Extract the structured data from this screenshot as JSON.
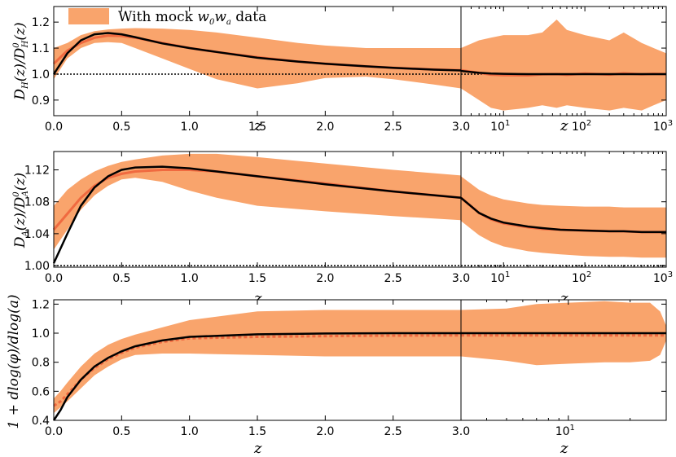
{
  "chart_data": [
    {
      "type": "line",
      "panel": "D_H ratio",
      "ylabel_main": "D",
      "ylabel_sub": "H",
      "ylabel_rest": "(z)/D",
      "ylabel_sup2": "0",
      "ylabel_sub2": "H",
      "ylabel_end": "(z)",
      "xlabel": "z",
      "ylim": [
        0.84,
        1.26
      ],
      "yticks": [
        "0.9",
        "1.0",
        "1.1",
        "1.2"
      ],
      "ytick_values": [
        0.9,
        1.0,
        1.1,
        1.2
      ],
      "linear_xlim": [
        0.0,
        3.0
      ],
      "linear_xticks": [
        "0.0",
        "0.5",
        "1.0",
        "1.5",
        "2.0",
        "2.5",
        "3.0"
      ],
      "log_xlim_exp": [
        0.477,
        3.0
      ],
      "log_xticks": [
        "10",
        "10",
        "10"
      ],
      "log_xtick_exps": [
        "1",
        "2",
        "3"
      ],
      "reference_line": 1.0,
      "linear": {
        "z": [
          0.0,
          0.1,
          0.2,
          0.3,
          0.4,
          0.5,
          0.6,
          0.8,
          1.0,
          1.2,
          1.5,
          1.8,
          2.0,
          2.3,
          2.5,
          2.8,
          3.0
        ],
        "model": [
          1.0,
          1.08,
          1.13,
          1.153,
          1.158,
          1.153,
          1.142,
          1.118,
          1.1,
          1.085,
          1.063,
          1.048,
          1.04,
          1.03,
          1.024,
          1.017,
          1.014
        ],
        "mock": [
          1.04,
          1.09,
          1.12,
          1.14,
          1.148,
          1.147,
          1.14,
          1.12,
          1.1,
          1.085,
          1.065,
          1.048,
          1.04,
          1.03,
          1.024,
          1.018,
          1.015
        ],
        "band_upper": [
          1.1,
          1.12,
          1.15,
          1.165,
          1.172,
          1.175,
          1.177,
          1.175,
          1.17,
          1.16,
          1.14,
          1.12,
          1.11,
          1.1,
          1.1,
          1.1,
          1.1
        ],
        "band_lower": [
          0.98,
          1.06,
          1.1,
          1.12,
          1.123,
          1.12,
          1.1,
          1.06,
          1.02,
          0.98,
          0.945,
          0.965,
          0.985,
          0.99,
          0.98,
          0.96,
          0.945
        ]
      },
      "log": {
        "z": [
          3,
          5,
          7,
          10,
          20,
          30,
          45,
          60,
          100,
          200,
          300,
          500,
          700,
          1000
        ],
        "model": [
          1.012,
          1.005,
          1.002,
          1.001,
          1.0,
          1.0,
          1.0,
          1.0,
          1.0,
          1.0,
          1.0,
          1.0,
          1.0,
          1.0
        ],
        "mock": [
          1.015,
          1.005,
          0.998,
          0.996,
          0.995,
          0.999,
          1.0,
          0.997,
          1.002,
          0.998,
          1.003,
          0.999,
          1.001,
          1.0
        ],
        "band_upper": [
          1.1,
          1.13,
          1.14,
          1.15,
          1.15,
          1.16,
          1.21,
          1.17,
          1.15,
          1.13,
          1.16,
          1.12,
          1.1,
          1.08
        ],
        "band_lower": [
          0.945,
          0.9,
          0.87,
          0.86,
          0.87,
          0.88,
          0.87,
          0.88,
          0.87,
          0.86,
          0.87,
          0.86,
          0.88,
          0.9
        ]
      }
    },
    {
      "type": "line",
      "panel": "D_A ratio",
      "ylabel_main": "D",
      "ylabel_sub": "A",
      "ylabel_rest": "(z)/D",
      "ylabel_sup2": "0",
      "ylabel_sub2": "A",
      "ylabel_end": "(z)",
      "xlabel": "z",
      "ylim": [
        0.998,
        1.143
      ],
      "yticks": [
        "1.00",
        "1.04",
        "1.08",
        "1.12"
      ],
      "ytick_values": [
        1.0,
        1.04,
        1.08,
        1.12
      ],
      "linear_xlim": [
        0.0,
        3.0
      ],
      "linear_xticks": [
        "0.0",
        "0.5",
        "1.0",
        "1.5",
        "2.0",
        "2.5",
        "3.0"
      ],
      "log_xlim_exp": [
        0.477,
        3.0
      ],
      "log_xticks": [
        "10",
        "10",
        "10"
      ],
      "log_xtick_exps": [
        "1",
        "2",
        "3"
      ],
      "reference_line": 1.0,
      "linear": {
        "z": [
          0.0,
          0.1,
          0.2,
          0.3,
          0.4,
          0.5,
          0.6,
          0.8,
          1.0,
          1.2,
          1.5,
          2.0,
          2.5,
          3.0
        ],
        "model": [
          1.003,
          1.04,
          1.075,
          1.098,
          1.112,
          1.12,
          1.123,
          1.124,
          1.122,
          1.118,
          1.112,
          1.102,
          1.093,
          1.085
        ],
        "mock": [
          1.045,
          1.065,
          1.085,
          1.1,
          1.11,
          1.115,
          1.118,
          1.12,
          1.12,
          1.118,
          1.112,
          1.103,
          1.093,
          1.085
        ],
        "band_upper": [
          1.075,
          1.095,
          1.108,
          1.118,
          1.125,
          1.13,
          1.133,
          1.138,
          1.14,
          1.14,
          1.136,
          1.128,
          1.12,
          1.113
        ],
        "band_lower": [
          1.02,
          1.045,
          1.07,
          1.088,
          1.1,
          1.108,
          1.11,
          1.105,
          1.094,
          1.085,
          1.075,
          1.068,
          1.062,
          1.057
        ]
      },
      "log": {
        "z": [
          3,
          5,
          7,
          10,
          20,
          30,
          50,
          100,
          200,
          300,
          500,
          1000
        ],
        "model": [
          1.085,
          1.066,
          1.059,
          1.054,
          1.049,
          1.047,
          1.045,
          1.044,
          1.043,
          1.043,
          1.042,
          1.042
        ],
        "mock": [
          1.085,
          1.066,
          1.058,
          1.053,
          1.048,
          1.046,
          1.045,
          1.044,
          1.043,
          1.043,
          1.042,
          1.042
        ],
        "band_upper": [
          1.112,
          1.095,
          1.088,
          1.083,
          1.078,
          1.076,
          1.075,
          1.074,
          1.074,
          1.073,
          1.073,
          1.073
        ],
        "band_lower": [
          1.056,
          1.038,
          1.03,
          1.024,
          1.018,
          1.016,
          1.014,
          1.012,
          1.011,
          1.011,
          1.01,
          1.01
        ]
      }
    },
    {
      "type": "line",
      "panel": "growth",
      "ylabel_full": "1 + dlog(φ)/dlog(a)",
      "xlabel": "z",
      "ylim": [
        0.4,
        1.23
      ],
      "yticks": [
        "0.4",
        "0.6",
        "0.8",
        "1.0",
        "1.2"
      ],
      "ytick_values": [
        0.4,
        0.6,
        0.8,
        1.0,
        1.2
      ],
      "linear_xlim": [
        0.0,
        3.0
      ],
      "linear_xticks": [
        "0.0",
        "0.5",
        "1.0",
        "1.5",
        "2.0",
        "2.5",
        "3.0"
      ],
      "log_xlim_exp": [
        0.477,
        1.477
      ],
      "log_xticks": [
        "10"
      ],
      "log_xtick_exps": [
        "1"
      ],
      "linear": {
        "z": [
          0.0,
          0.05,
          0.1,
          0.2,
          0.3,
          0.4,
          0.5,
          0.6,
          0.8,
          1.0,
          1.5,
          2.0,
          2.5,
          3.0
        ],
        "model": [
          0.4,
          0.47,
          0.56,
          0.68,
          0.77,
          0.83,
          0.875,
          0.91,
          0.95,
          0.975,
          0.992,
          0.998,
          1.0,
          1.0
        ],
        "mock": [
          0.5,
          0.53,
          0.58,
          0.68,
          0.76,
          0.82,
          0.865,
          0.9,
          0.94,
          0.965,
          0.975,
          0.98,
          0.983,
          0.985
        ],
        "band_upper": [
          0.55,
          0.6,
          0.66,
          0.77,
          0.86,
          0.92,
          0.96,
          0.99,
          1.04,
          1.09,
          1.15,
          1.16,
          1.16,
          1.16
        ],
        "band_lower": [
          0.45,
          0.49,
          0.53,
          0.62,
          0.71,
          0.77,
          0.82,
          0.85,
          0.86,
          0.86,
          0.85,
          0.84,
          0.84,
          0.84
        ]
      },
      "log": {
        "z": [
          3,
          5,
          7,
          10,
          15,
          20,
          25,
          28,
          30
        ],
        "model": [
          1.0,
          1.0,
          1.0,
          1.0,
          1.0,
          1.0,
          1.0,
          1.0,
          1.0
        ],
        "mock": [
          0.985,
          0.985,
          0.985,
          0.985,
          0.985,
          0.985,
          0.985,
          0.985,
          0.985
        ],
        "band_upper": [
          1.16,
          1.17,
          1.2,
          1.21,
          1.22,
          1.21,
          1.21,
          1.15,
          1.05
        ],
        "band_lower": [
          0.84,
          0.81,
          0.78,
          0.79,
          0.8,
          0.8,
          0.81,
          0.85,
          0.95
        ]
      }
    }
  ],
  "legend": {
    "prefix": "With mock ",
    "math_w": "w",
    "sub0": "0",
    "math_w2": "w",
    "suba": "a",
    "suffix": " data",
    "placement": "top-left"
  },
  "colors": {
    "band": "#f9a46c",
    "mock_line": "#f06a40",
    "model_line": "#000000",
    "reference": "#000000"
  }
}
